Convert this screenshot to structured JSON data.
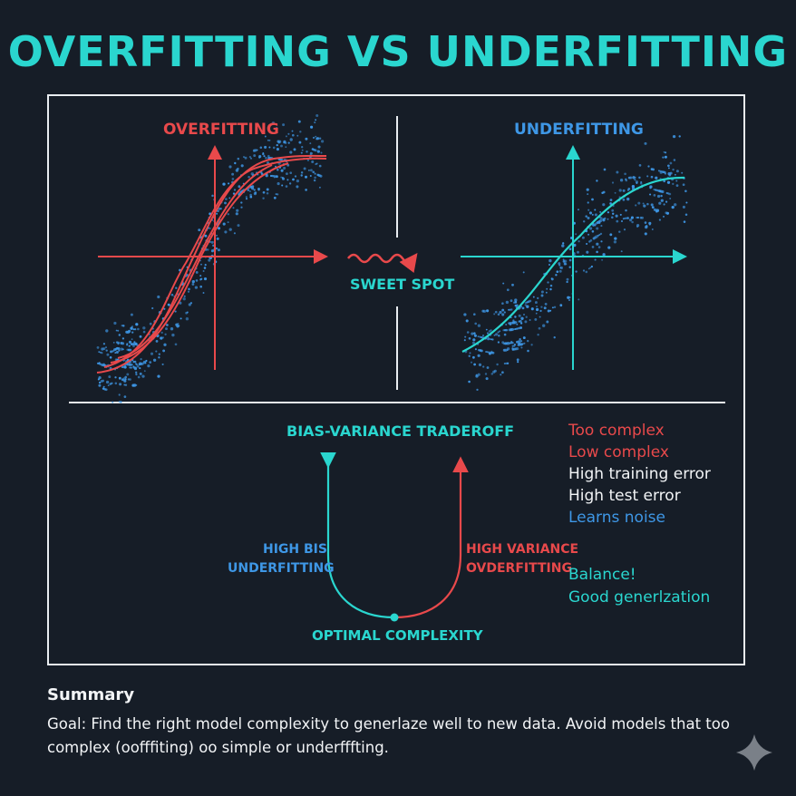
{
  "title": "OVERFITTING VS UNDERFITTING",
  "panels": {
    "overfitting_title": "OVERFITTING",
    "underfitting_title": "UNDERFITTING",
    "sweet_spot": "SWEET SPOT"
  },
  "tradeoff": {
    "title": "BIAS-VARIANCE TRADEROFF",
    "left_label_1": "HIGH BIS",
    "left_label_2": "UNDERFITTING",
    "right_label_1": "HIGH VARIANCE",
    "right_label_2": "OVDERFITTING",
    "bottom_label": "OPTIMAL COMPLEXITY"
  },
  "legend": {
    "items": [
      "Too complex",
      "Low complex",
      "High training error",
      "High test error",
      "Learns noise",
      "Balance!",
      "Good generlzation"
    ]
  },
  "summary": {
    "heading": "Summary",
    "text": "Goal: Find the right model complexity to generlaze well to new data. Avoid models that too complex (oofffiting) oo simple or underfffting."
  },
  "colors": {
    "background": "#161d27",
    "red": "#e8494b",
    "cyan": "#2ad6cf",
    "blue": "#3e97e6",
    "frame": "#e9edf1"
  },
  "icons": [
    "sparkle-icon"
  ]
}
